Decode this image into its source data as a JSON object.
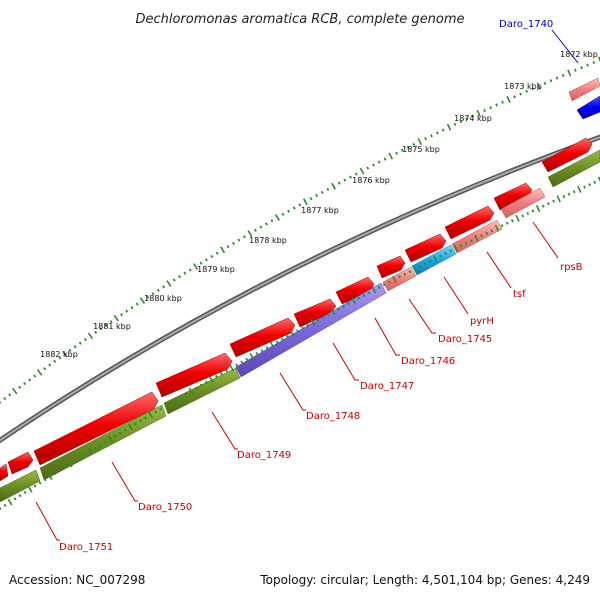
{
  "title": "Dechloromonas aromatica RCB, complete genome",
  "ticks": [
    "1872 kbp",
    "1873 kbp",
    "1874 kbp",
    "1875 kbp",
    "1876 kbp",
    "1877 kbp",
    "1878 kbp",
    "1879 kbp",
    "1880 kbp",
    "1881 kbp",
    "1882 kbp"
  ],
  "genes": [
    {
      "name": "Daro_1740",
      "color": "#0000cc"
    },
    {
      "name": "rpsB",
      "color": "#cc0000"
    },
    {
      "name": "tsf",
      "color": "#cc0000"
    },
    {
      "name": "pyrH",
      "color": "#cc0000"
    },
    {
      "name": "Daro_1745",
      "color": "#cc0000"
    },
    {
      "name": "Daro_1746",
      "color": "#cc0000"
    },
    {
      "name": "Daro_1747",
      "color": "#cc0000"
    },
    {
      "name": "Daro_1748",
      "color": "#cc0000"
    },
    {
      "name": "Daro_1749",
      "color": "#cc0000"
    },
    {
      "name": "Daro_1750",
      "color": "#cc0000"
    },
    {
      "name": "Daro_1751",
      "color": "#cc0000"
    }
  ],
  "footer": {
    "accession": "Accession: NC_007298",
    "topology": "Topology: circular; Length: 4,501,104 bp; Genes: 4,249"
  },
  "colors": {
    "forward_cds": "#ee0000",
    "reverse_highlight": "#f08080",
    "olive": "#6b8e23",
    "purple": "#7b68d8",
    "cyan": "#1ea7e8",
    "blue": "#0000ee",
    "backbone": "#888888",
    "tick_green": "#2e8b2e"
  }
}
